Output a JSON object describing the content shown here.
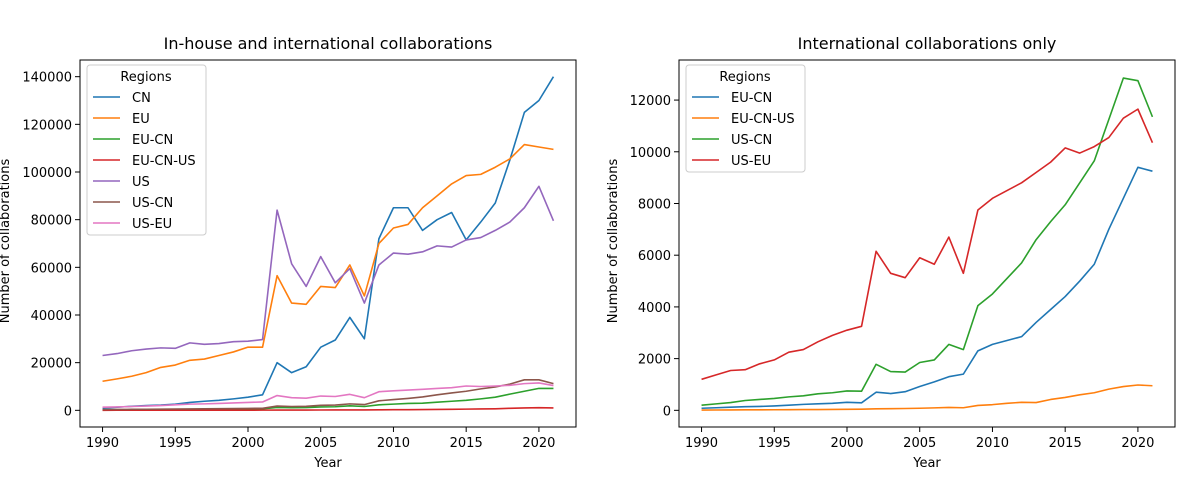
{
  "chart_data": [
    {
      "type": "line",
      "title": "In-house and international collaborations",
      "xlabel": "Year",
      "ylabel": "Number of collaborations",
      "xlim": [
        1988.45,
        2022.55
      ],
      "ylim": [
        -7000,
        147000
      ],
      "xticks": [
        1990,
        1995,
        2000,
        2005,
        2010,
        2015,
        2020
      ],
      "yticks": [
        0,
        20000,
        40000,
        60000,
        80000,
        100000,
        120000,
        140000
      ],
      "legend_title": "Regions",
      "legend_position": "upper-left",
      "grid": false,
      "x": [
        1990,
        1991,
        1992,
        1993,
        1994,
        1995,
        1996,
        1997,
        1998,
        1999,
        2000,
        2001,
        2002,
        2003,
        2004,
        2005,
        2006,
        2007,
        2008,
        2009,
        2010,
        2011,
        2012,
        2013,
        2014,
        2015,
        2016,
        2017,
        2018,
        2019,
        2020,
        2021
      ],
      "series": [
        {
          "name": "CN",
          "color": "#1f77b4",
          "values": [
            900,
            1300,
            1700,
            2000,
            2200,
            2600,
            3300,
            3800,
            4200,
            4800,
            5500,
            6500,
            20000,
            15800,
            18300,
            26500,
            29500,
            39000,
            30000,
            72000,
            85000,
            85000,
            75500,
            80000,
            83000,
            71500,
            79000,
            87000,
            105000,
            125000,
            130000,
            140000
          ]
        },
        {
          "name": "EU",
          "color": "#ff7f0e",
          "values": [
            12200,
            13200,
            14300,
            15800,
            18000,
            19000,
            21000,
            21500,
            23000,
            24500,
            26500,
            26500,
            56500,
            45000,
            44500,
            52000,
            51500,
            61000,
            48000,
            70000,
            76500,
            78000,
            85000,
            90000,
            95000,
            98500,
            99000,
            102000,
            105500,
            111500,
            110500,
            109500
          ]
        },
        {
          "name": "EU-CN",
          "color": "#2ca02c",
          "values": [
            150,
            180,
            220,
            250,
            300,
            350,
            400,
            450,
            500,
            550,
            600,
            650,
            1200,
            1100,
            1150,
            1400,
            1500,
            1900,
            1600,
            2300,
            2600,
            2900,
            3000,
            3400,
            3800,
            4200,
            4800,
            5500,
            6800,
            8000,
            9200,
            9200
          ]
        },
        {
          "name": "EU-CN-US",
          "color": "#d62728",
          "values": [
            20,
            25,
            30,
            35,
            40,
            45,
            50,
            55,
            60,
            65,
            70,
            80,
            110,
            100,
            110,
            130,
            140,
            180,
            170,
            220,
            250,
            280,
            300,
            350,
            430,
            500,
            580,
            650,
            850,
            1000,
            1100,
            1000
          ]
        },
        {
          "name": "US",
          "color": "#9467bd",
          "values": [
            23000,
            23800,
            25000,
            25700,
            26200,
            26000,
            28300,
            27700,
            28000,
            28800,
            29000,
            29700,
            84000,
            61500,
            52000,
            64500,
            53500,
            59500,
            45000,
            61000,
            66000,
            65500,
            66500,
            69000,
            68500,
            71500,
            72500,
            75500,
            79000,
            85000,
            94000,
            79500
          ]
        },
        {
          "name": "US-CN",
          "color": "#8c564b",
          "values": [
            300,
            350,
            400,
            450,
            500,
            550,
            600,
            650,
            700,
            750,
            800,
            850,
            1800,
            1600,
            1700,
            2100,
            2200,
            2700,
            2400,
            4000,
            4500,
            5000,
            5600,
            6500,
            7300,
            8000,
            9000,
            9800,
            11000,
            12800,
            12800,
            11200
          ]
        },
        {
          "name": "US-EU",
          "color": "#e377c2",
          "values": [
            1300,
            1400,
            1600,
            1800,
            2000,
            2300,
            2600,
            2700,
            2900,
            3100,
            3300,
            3500,
            6200,
            5300,
            5100,
            6000,
            5800,
            6700,
            5300,
            7800,
            8200,
            8500,
            8800,
            9200,
            9500,
            10200,
            10000,
            10200,
            10500,
            11200,
            11500,
            10400
          ]
        }
      ]
    },
    {
      "type": "line",
      "title": "International collaborations only",
      "xlabel": "Year",
      "ylabel": "Number of collaborations",
      "xlim": [
        1988.45,
        2022.55
      ],
      "ylim": [
        -645,
        13550
      ],
      "xticks": [
        1990,
        1995,
        2000,
        2005,
        2010,
        2015,
        2020
      ],
      "yticks": [
        0,
        2000,
        4000,
        6000,
        8000,
        10000,
        12000
      ],
      "legend_title": "Regions",
      "legend_position": "upper-left",
      "grid": false,
      "x": [
        1990,
        1991,
        1992,
        1993,
        1994,
        1995,
        1996,
        1997,
        1998,
        1999,
        2000,
        2001,
        2002,
        2003,
        2004,
        2005,
        2006,
        2007,
        2008,
        2009,
        2010,
        2011,
        2012,
        2013,
        2014,
        2015,
        2016,
        2017,
        2018,
        2019,
        2020,
        2021
      ],
      "series": [
        {
          "name": "EU-CN",
          "color": "#1f77b4",
          "values": [
            80,
            100,
            120,
            140,
            150,
            170,
            200,
            230,
            250,
            270,
            310,
            290,
            700,
            650,
            720,
            920,
            1100,
            1300,
            1400,
            2300,
            2550,
            2700,
            2850,
            3400,
            3900,
            4400,
            5000,
            5650,
            7000,
            8200,
            9400,
            9250
          ]
        },
        {
          "name": "EU-CN-US",
          "color": "#ff7f0e",
          "values": [
            10,
            12,
            15,
            18,
            20,
            22,
            25,
            28,
            30,
            35,
            40,
            45,
            60,
            65,
            70,
            80,
            95,
            110,
            100,
            190,
            220,
            270,
            310,
            300,
            420,
            500,
            600,
            680,
            820,
            920,
            980,
            950
          ]
        },
        {
          "name": "US-CN",
          "color": "#2ca02c",
          "values": [
            200,
            250,
            300,
            380,
            420,
            460,
            520,
            560,
            640,
            680,
            750,
            740,
            1780,
            1500,
            1480,
            1850,
            1950,
            2550,
            2350,
            4050,
            4500,
            5100,
            5700,
            6600,
            7300,
            7950,
            8800,
            9650,
            11250,
            12850,
            12750,
            11350
          ]
        },
        {
          "name": "US-EU",
          "color": "#d62728",
          "values": [
            1200,
            1370,
            1540,
            1570,
            1800,
            1950,
            2250,
            2350,
            2650,
            2900,
            3100,
            3250,
            6150,
            5300,
            5130,
            5900,
            5650,
            6700,
            5300,
            7750,
            8200,
            8500,
            8800,
            9200,
            9600,
            10150,
            9950,
            10200,
            10550,
            11300,
            11650,
            10350
          ]
        }
      ]
    }
  ]
}
